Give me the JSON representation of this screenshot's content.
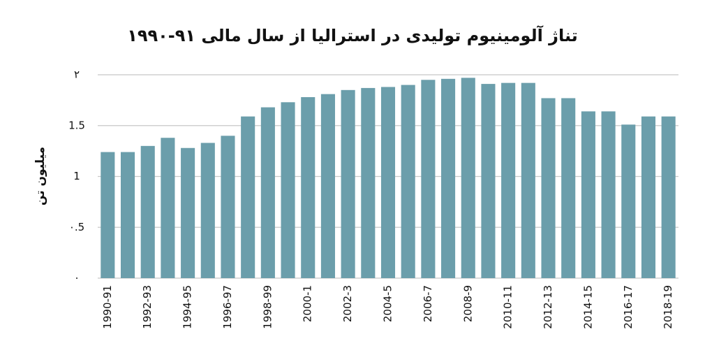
{
  "chart_data": {
    "type": "bar",
    "title": "تناژ آلومینیوم تولیدی در استرالیا از سال مالی ۹۱-۱۹۹۰",
    "y_label": "میلیون تن",
    "categories": [
      "1990-91",
      null,
      "1992-93",
      null,
      "1994-95",
      null,
      "1996-97",
      null,
      "1998-99",
      null,
      "2000-1",
      null,
      "2002-3",
      null,
      "2004-5",
      null,
      "2006-7",
      null,
      "2008-9",
      null,
      "2010-11",
      null,
      "2012-13",
      null,
      "2014-15",
      null,
      "2016-17",
      null,
      "2018-19"
    ],
    "values": [
      1.24,
      1.24,
      1.3,
      1.38,
      1.28,
      1.33,
      1.4,
      1.59,
      1.68,
      1.73,
      1.78,
      1.81,
      1.85,
      1.87,
      1.88,
      1.9,
      1.95,
      1.96,
      1.97,
      1.91,
      1.92,
      1.92,
      1.77,
      1.77,
      1.64,
      1.64,
      1.51,
      1.59,
      1.59
    ],
    "color": "#6b9eab",
    "ylim": [
      0,
      2
    ],
    "yticks": [
      {
        "value": 0,
        "label": "۰"
      },
      {
        "value": 0.5,
        "label": "۰.5"
      },
      1,
      1.5,
      {
        "value": 2,
        "label": "۲"
      }
    ],
    "grid": true
  }
}
